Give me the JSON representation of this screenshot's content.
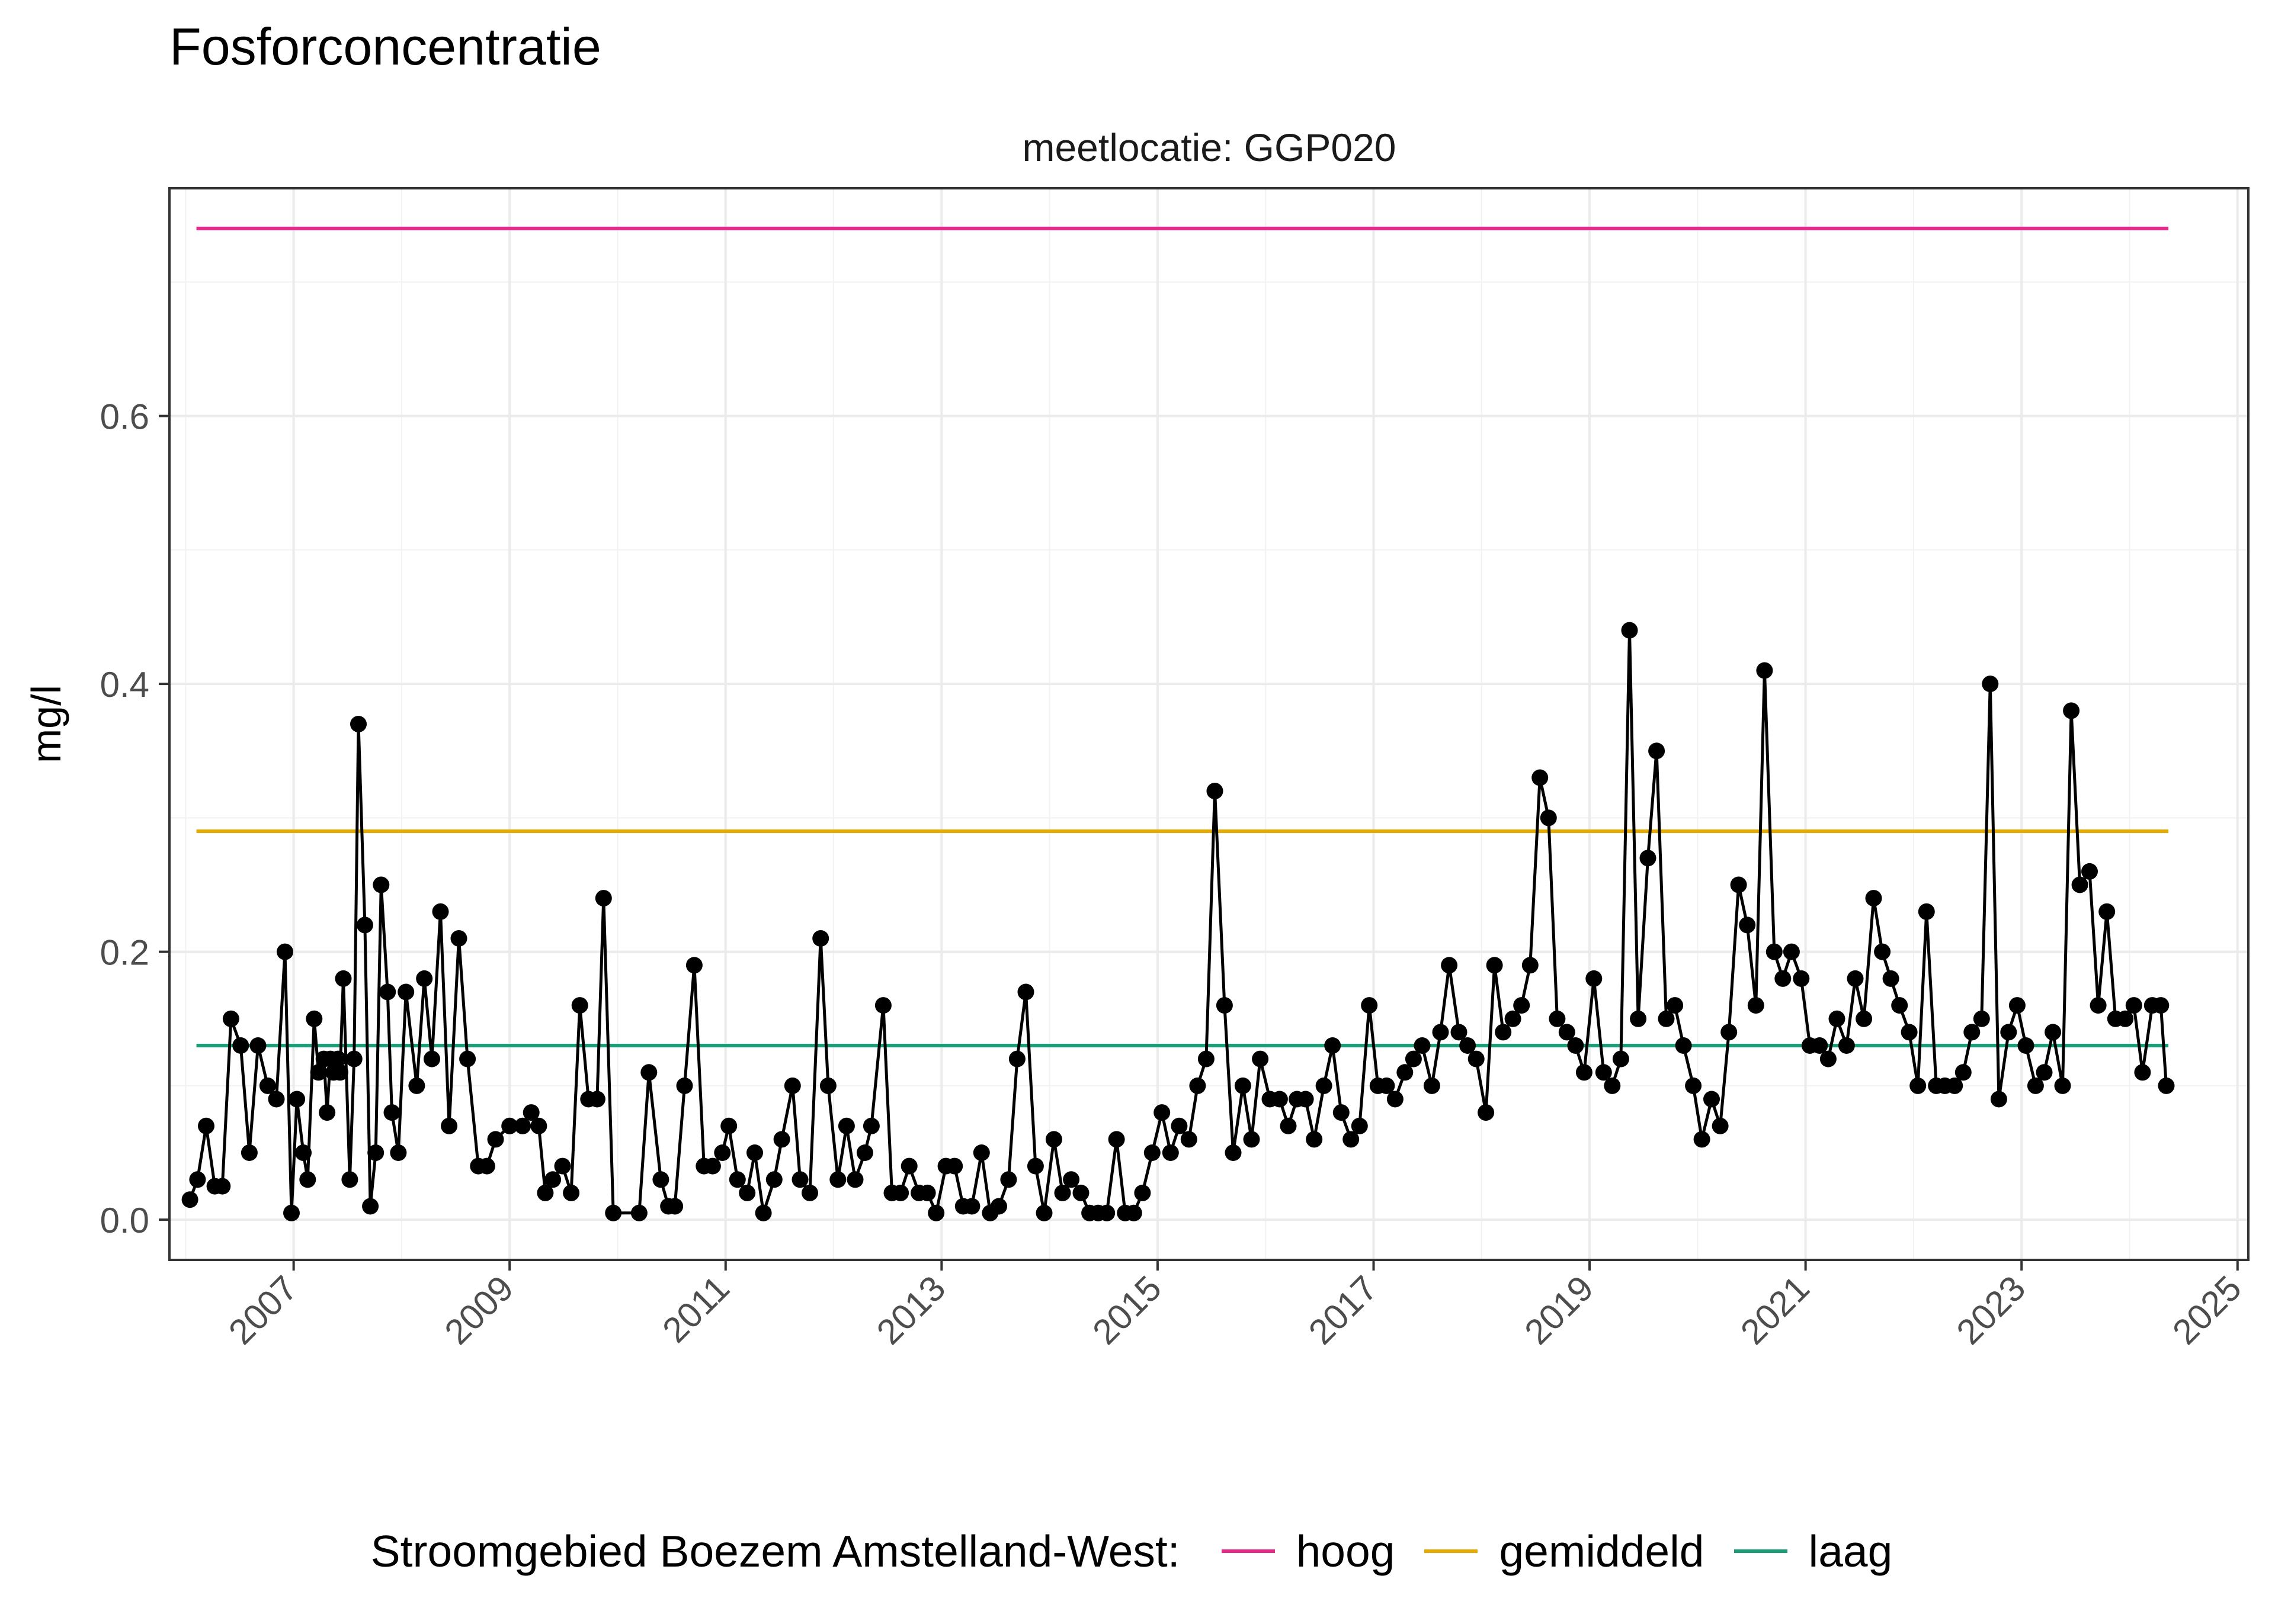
{
  "chart_data": {
    "type": "line",
    "title": "Fosforconcentratie",
    "subtitle": "meetlocatie: GGP020",
    "ylabel": "mg/l",
    "xlabel": "",
    "xlim": [
      2005.85,
      2025.1
    ],
    "ylim": [
      -0.03,
      0.77
    ],
    "y_ticks": [
      0.0,
      0.2,
      0.4,
      0.6
    ],
    "y_tick_labels": [
      "0.0",
      "0.2",
      "0.4",
      "0.6"
    ],
    "x_ticks": [
      2007,
      2009,
      2011,
      2013,
      2015,
      2017,
      2019,
      2021,
      2023,
      2025
    ],
    "x_tick_labels": [
      "2007",
      "2009",
      "2011",
      "2013",
      "2015",
      "2017",
      "2019",
      "2021",
      "2023",
      "2025"
    ],
    "grid": true,
    "legend_position": "bottom",
    "legend_title": "Stroomgebied Boezem Amstelland-West:",
    "reference_lines": [
      {
        "name": "hoog",
        "value": 0.74,
        "color": "#e7298a",
        "x_start": 2006.1,
        "x_end": 2024.36
      },
      {
        "name": "gemiddeld",
        "value": 0.29,
        "color": "#e6ab02",
        "x_start": 2006.1,
        "x_end": 2024.36
      },
      {
        "name": "laag",
        "value": 0.13,
        "color": "#1b9e77",
        "x_start": 2006.1,
        "x_end": 2024.36
      }
    ],
    "series": [
      {
        "color": "#000000",
        "x": [
          2006.04,
          2006.11,
          2006.19,
          2006.27,
          2006.34,
          2006.42,
          2006.51,
          2006.59,
          2006.67,
          2006.76,
          2006.84,
          2006.92,
          2006.98,
          2007.03,
          2007.09,
          2007.13,
          2007.19,
          2007.23,
          2007.28,
          2007.31,
          2007.34,
          2007.37,
          2007.41,
          2007.43,
          2007.46,
          2007.52,
          2007.56,
          2007.6,
          2007.66,
          2007.71,
          2007.76,
          2007.81,
          2007.87,
          2007.91,
          2007.97,
          2008.04,
          2008.14,
          2008.21,
          2008.28,
          2008.36,
          2008.44,
          2008.53,
          2008.61,
          2008.71,
          2008.79,
          2008.87,
          2009.0,
          2009.12,
          2009.2,
          2009.27,
          2009.33,
          2009.4,
          2009.49,
          2009.57,
          2009.65,
          2009.73,
          2009.81,
          2009.87,
          2009.96,
          2010.2,
          2010.29,
          2010.4,
          2010.47,
          2010.53,
          2010.62,
          2010.71,
          2010.8,
          2010.88,
          2010.97,
          2011.03,
          2011.11,
          2011.2,
          2011.27,
          2011.35,
          2011.45,
          2011.52,
          2011.62,
          2011.69,
          2011.78,
          2011.88,
          2011.95,
          2012.04,
          2012.12,
          2012.2,
          2012.29,
          2012.35,
          2012.46,
          2012.54,
          2012.62,
          2012.7,
          2012.79,
          2012.87,
          2012.95,
          2013.04,
          2013.12,
          2013.2,
          2013.28,
          2013.37,
          2013.45,
          2013.53,
          2013.62,
          2013.7,
          2013.78,
          2013.87,
          2013.95,
          2014.04,
          2014.12,
          2014.2,
          2014.29,
          2014.37,
          2014.45,
          2014.53,
          2014.62,
          2014.7,
          2014.78,
          2014.86,
          2014.95,
          2015.04,
          2015.12,
          2015.2,
          2015.29,
          2015.37,
          2015.45,
          2015.53,
          2015.62,
          2015.7,
          2015.79,
          2015.87,
          2015.95,
          2016.04,
          2016.13,
          2016.21,
          2016.29,
          2016.37,
          2016.45,
          2016.54,
          2016.62,
          2016.7,
          2016.79,
          2016.87,
          2016.96,
          2017.04,
          2017.12,
          2017.2,
          2017.29,
          2017.37,
          2017.45,
          2017.54,
          2017.62,
          2017.7,
          2017.79,
          2017.87,
          2017.95,
          2018.04,
          2018.12,
          2018.2,
          2018.29,
          2018.37,
          2018.45,
          2018.54,
          2018.62,
          2018.7,
          2018.79,
          2018.87,
          2018.95,
          2019.04,
          2019.13,
          2019.21,
          2019.29,
          2019.37,
          2019.45,
          2019.54,
          2019.62,
          2019.71,
          2019.79,
          2019.87,
          2019.96,
          2020.04,
          2020.13,
          2020.21,
          2020.29,
          2020.38,
          2020.46,
          2020.54,
          2020.62,
          2020.71,
          2020.79,
          2020.87,
          2020.96,
          2021.04,
          2021.13,
          2021.21,
          2021.29,
          2021.38,
          2021.46,
          2021.54,
          2021.63,
          2021.71,
          2021.79,
          2021.87,
          2021.96,
          2022.04,
          2022.12,
          2022.21,
          2022.29,
          2022.38,
          2022.46,
          2022.54,
          2022.63,
          2022.71,
          2022.79,
          2022.88,
          2022.96,
          2023.04,
          2023.13,
          2023.21,
          2023.29,
          2023.38,
          2023.46,
          2023.54,
          2023.63,
          2023.71,
          2023.79,
          2023.87,
          2023.96,
          2024.04,
          2024.12,
          2024.21,
          2024.29,
          2024.34
        ],
        "y": [
          0.015,
          0.03,
          0.07,
          0.025,
          0.025,
          0.15,
          0.13,
          0.05,
          0.13,
          0.1,
          0.09,
          0.2,
          0.005,
          0.09,
          0.05,
          0.03,
          0.15,
          0.11,
          0.12,
          0.08,
          0.12,
          0.11,
          0.12,
          0.11,
          0.18,
          0.03,
          0.12,
          0.37,
          0.22,
          0.01,
          0.05,
          0.25,
          0.17,
          0.08,
          0.05,
          0.17,
          0.1,
          0.18,
          0.12,
          0.23,
          0.07,
          0.21,
          0.12,
          0.04,
          0.04,
          0.06,
          0.07,
          0.07,
          0.08,
          0.07,
          0.02,
          0.03,
          0.04,
          0.02,
          0.16,
          0.09,
          0.09,
          0.24,
          0.005,
          0.005,
          0.11,
          0.03,
          0.01,
          0.01,
          0.1,
          0.19,
          0.04,
          0.04,
          0.05,
          0.07,
          0.03,
          0.02,
          0.05,
          0.005,
          0.03,
          0.06,
          0.1,
          0.03,
          0.02,
          0.21,
          0.1,
          0.03,
          0.07,
          0.03,
          0.05,
          0.07,
          0.16,
          0.02,
          0.02,
          0.04,
          0.02,
          0.02,
          0.005,
          0.04,
          0.04,
          0.01,
          0.01,
          0.05,
          0.005,
          0.01,
          0.03,
          0.12,
          0.17,
          0.04,
          0.005,
          0.06,
          0.02,
          0.03,
          0.02,
          0.005,
          0.005,
          0.005,
          0.06,
          0.005,
          0.005,
          0.02,
          0.05,
          0.08,
          0.05,
          0.07,
          0.06,
          0.1,
          0.12,
          0.32,
          0.16,
          0.05,
          0.1,
          0.06,
          0.12,
          0.09,
          0.09,
          0.07,
          0.09,
          0.09,
          0.06,
          0.1,
          0.13,
          0.08,
          0.06,
          0.07,
          0.16,
          0.1,
          0.1,
          0.09,
          0.11,
          0.12,
          0.13,
          0.1,
          0.14,
          0.19,
          0.14,
          0.13,
          0.12,
          0.08,
          0.19,
          0.14,
          0.15,
          0.16,
          0.19,
          0.33,
          0.3,
          0.15,
          0.14,
          0.13,
          0.11,
          0.18,
          0.11,
          0.1,
          0.12,
          0.44,
          0.15,
          0.27,
          0.35,
          0.15,
          0.16,
          0.13,
          0.1,
          0.06,
          0.09,
          0.07,
          0.14,
          0.25,
          0.22,
          0.16,
          0.41,
          0.2,
          0.18,
          0.2,
          0.18,
          0.13,
          0.13,
          0.12,
          0.15,
          0.13,
          0.18,
          0.15,
          0.24,
          0.2,
          0.18,
          0.16,
          0.14,
          0.1,
          0.23,
          0.1,
          0.1,
          0.1,
          0.11,
          0.14,
          0.15,
          0.4,
          0.09,
          0.14,
          0.16,
          0.13,
          0.1,
          0.11,
          0.14,
          0.1,
          0.38,
          0.25,
          0.26,
          0.16,
          0.23,
          0.15,
          0.15,
          0.16,
          0.11,
          0.16,
          0.16,
          0.1
        ]
      }
    ]
  }
}
